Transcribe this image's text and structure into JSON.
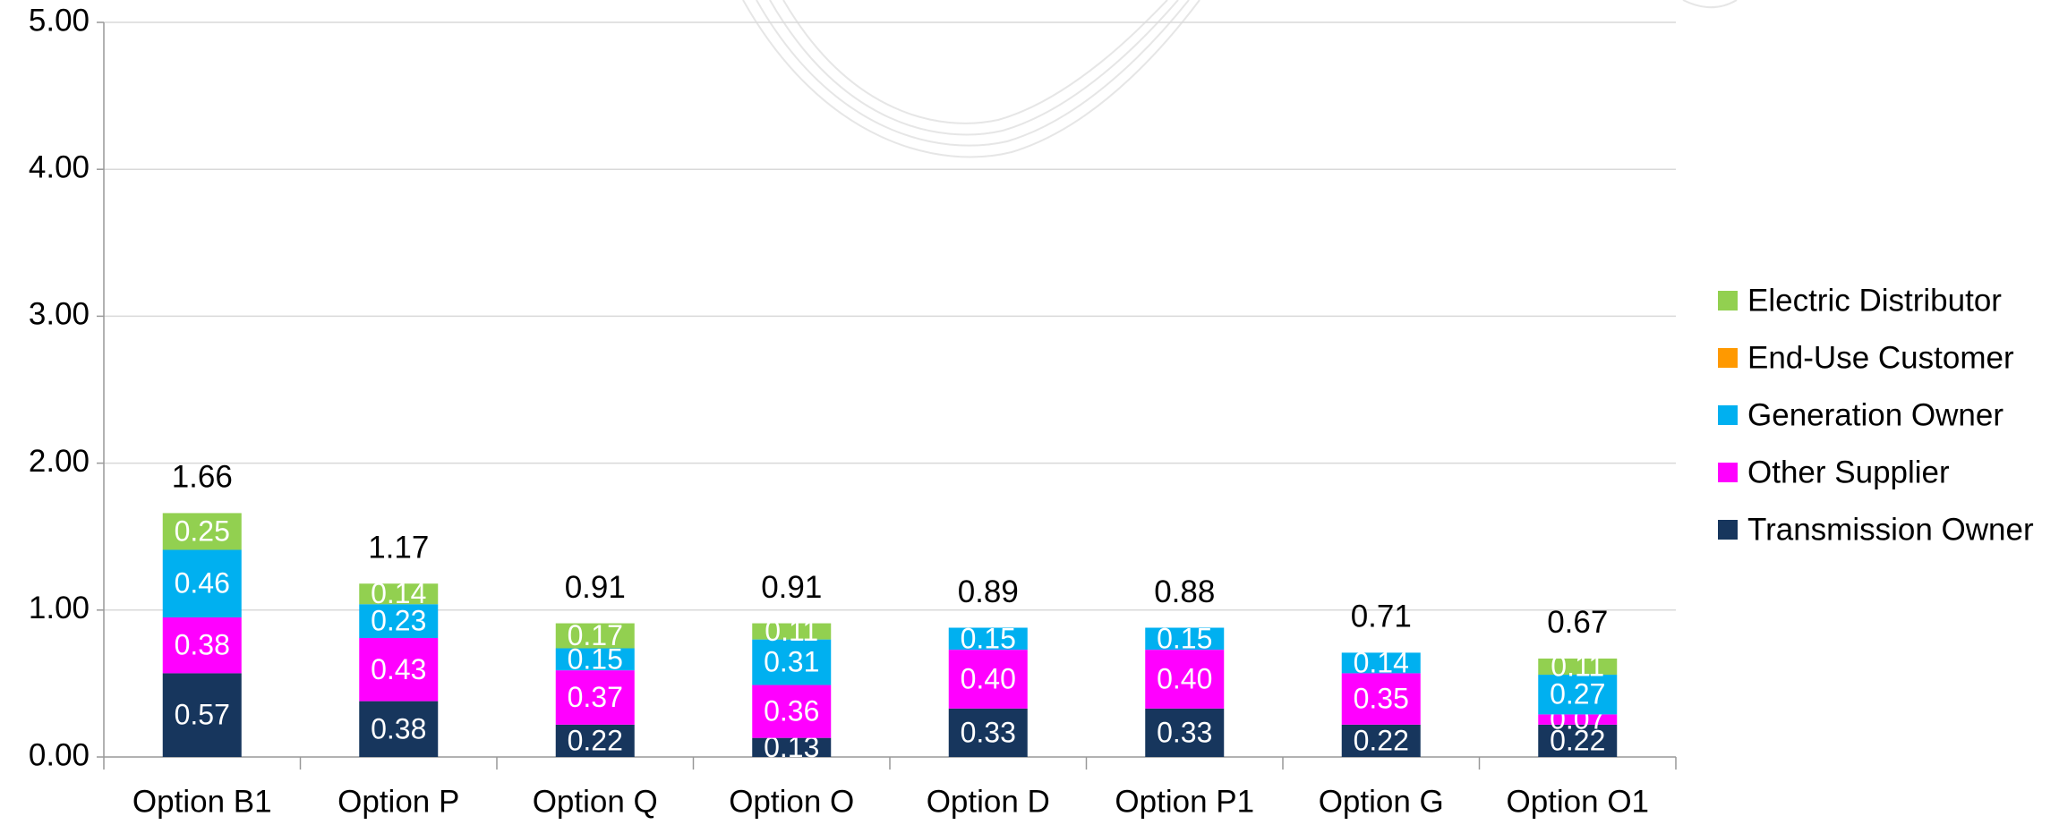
{
  "chart_data": {
    "type": "stacked-bar",
    "categories": [
      "Option B1",
      "Option P",
      "Option Q",
      "Option O",
      "Option D",
      "Option P1",
      "Option G",
      "Option O1"
    ],
    "series": [
      {
        "name": "Transmission Owner",
        "color": "#17365d",
        "values": [
          0.57,
          0.38,
          0.22,
          0.13,
          0.33,
          0.33,
          0.22,
          0.22
        ],
        "value_labels": [
          "0.57",
          "0.38",
          "0.22",
          "0.13",
          "0.33",
          "0.33",
          "0.22",
          "0.22"
        ]
      },
      {
        "name": "Other Supplier",
        "color": "#ff00ff",
        "values": [
          0.38,
          0.43,
          0.37,
          0.36,
          0.4,
          0.4,
          0.35,
          0.07
        ],
        "value_labels": [
          "0.38",
          "0.43",
          "0.37",
          "0.36",
          "0.40",
          "0.40",
          "0.35",
          "0.07"
        ]
      },
      {
        "name": "Generation Owner",
        "color": "#00b0f0",
        "values": [
          0.46,
          0.23,
          0.15,
          0.31,
          0.15,
          0.15,
          0.14,
          0.27
        ],
        "value_labels": [
          "0.46",
          "0.23",
          "0.15",
          "0.31",
          "0.15",
          "0.15",
          "0.14",
          "0.27"
        ]
      },
      {
        "name": "End-Use Customer",
        "color": "#ff9900",
        "values": [
          null,
          null,
          null,
          null,
          null,
          null,
          null,
          null
        ]
      },
      {
        "name": "Electric Distributor",
        "color": "#92d050",
        "values": [
          0.25,
          0.14,
          0.17,
          0.11,
          null,
          null,
          null,
          0.11
        ],
        "value_labels": [
          "0.25",
          "0.14",
          "0.17",
          "0.11",
          null,
          null,
          null,
          "0.11"
        ]
      }
    ],
    "totals": [
      1.66,
      1.17,
      0.91,
      0.91,
      0.89,
      0.88,
      0.71,
      0.67
    ],
    "ylim": [
      0,
      5
    ],
    "yticks": [
      {
        "value": 0,
        "label": "0.00"
      },
      {
        "value": 1,
        "label": "1.00"
      },
      {
        "value": 2,
        "label": "2.00"
      },
      {
        "value": 3,
        "label": "3.00"
      },
      {
        "value": 4,
        "label": "4.00"
      },
      {
        "value": 5,
        "label": "5.00"
      }
    ],
    "grid": true,
    "legend": "right"
  }
}
